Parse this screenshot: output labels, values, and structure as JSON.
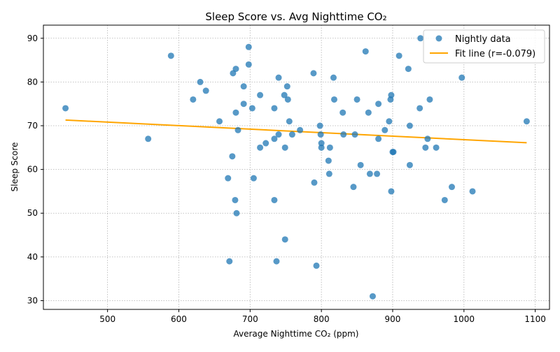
{
  "chart_data": {
    "type": "scatter",
    "title": "Sleep Score vs. Avg Nighttime CO₂",
    "xlabel": "Average Nighttime CO₂ (ppm)",
    "ylabel": "Sleep Score",
    "xlim": [
      410,
      1120
    ],
    "ylim": [
      28,
      93
    ],
    "xticks": [
      500,
      600,
      700,
      800,
      900,
      1000,
      1100
    ],
    "yticks": [
      30,
      40,
      50,
      60,
      70,
      80,
      90
    ],
    "grid": true,
    "legend_position": "top-right",
    "colors": {
      "points": "#1f77b4",
      "fit": "#ffa500"
    },
    "series": [
      {
        "name": "Nightly data",
        "kind": "scatter",
        "points": [
          [
            441,
            74
          ],
          [
            557,
            67
          ],
          [
            589,
            86
          ],
          [
            620,
            76
          ],
          [
            630,
            80
          ],
          [
            638,
            78
          ],
          [
            657,
            71
          ],
          [
            669,
            58
          ],
          [
            671,
            39
          ],
          [
            675,
            63
          ],
          [
            676,
            82
          ],
          [
            679,
            53
          ],
          [
            680,
            83
          ],
          [
            680,
            73
          ],
          [
            681,
            50
          ],
          [
            683,
            69
          ],
          [
            691,
            79
          ],
          [
            691,
            75
          ],
          [
            698,
            88
          ],
          [
            698,
            84
          ],
          [
            703,
            74
          ],
          [
            705,
            58
          ],
          [
            714,
            65
          ],
          [
            714,
            77
          ],
          [
            722,
            66
          ],
          [
            734,
            74
          ],
          [
            734,
            67
          ],
          [
            734,
            53
          ],
          [
            737,
            39
          ],
          [
            740,
            68
          ],
          [
            740,
            81
          ],
          [
            748,
            77
          ],
          [
            749,
            65
          ],
          [
            749,
            44
          ],
          [
            752,
            79
          ],
          [
            753,
            76
          ],
          [
            755,
            71
          ],
          [
            759,
            68
          ],
          [
            770,
            69
          ],
          [
            789,
            82
          ],
          [
            790,
            57
          ],
          [
            793,
            38
          ],
          [
            798,
            70
          ],
          [
            799,
            68
          ],
          [
            800,
            65
          ],
          [
            800,
            66
          ],
          [
            810,
            62
          ],
          [
            811,
            59
          ],
          [
            812,
            65
          ],
          [
            817,
            81
          ],
          [
            818,
            76
          ],
          [
            830,
            73
          ],
          [
            831,
            68
          ],
          [
            845,
            56
          ],
          [
            847,
            68
          ],
          [
            850,
            76
          ],
          [
            855,
            61
          ],
          [
            862,
            87
          ],
          [
            866,
            73
          ],
          [
            868,
            59
          ],
          [
            872,
            31
          ],
          [
            878,
            59
          ],
          [
            880,
            67
          ],
          [
            880,
            75
          ],
          [
            889,
            69
          ],
          [
            895,
            71
          ],
          [
            897,
            76
          ],
          [
            898,
            77
          ],
          [
            898,
            55
          ],
          [
            900,
            64
          ],
          [
            901,
            64
          ],
          [
            909,
            86
          ],
          [
            922,
            83
          ],
          [
            924,
            70
          ],
          [
            924,
            61
          ],
          [
            938,
            74
          ],
          [
            939,
            90
          ],
          [
            946,
            65
          ],
          [
            949,
            67
          ],
          [
            952,
            76
          ],
          [
            961,
            65
          ],
          [
            973,
            53
          ],
          [
            983,
            56
          ],
          [
            997,
            81
          ],
          [
            1012,
            55
          ],
          [
            1088,
            71
          ]
        ]
      },
      {
        "name": "Fit line (r=-0.079)",
        "kind": "line",
        "points": [
          [
            441,
            71.3
          ],
          [
            1088,
            66.1
          ]
        ]
      }
    ]
  }
}
